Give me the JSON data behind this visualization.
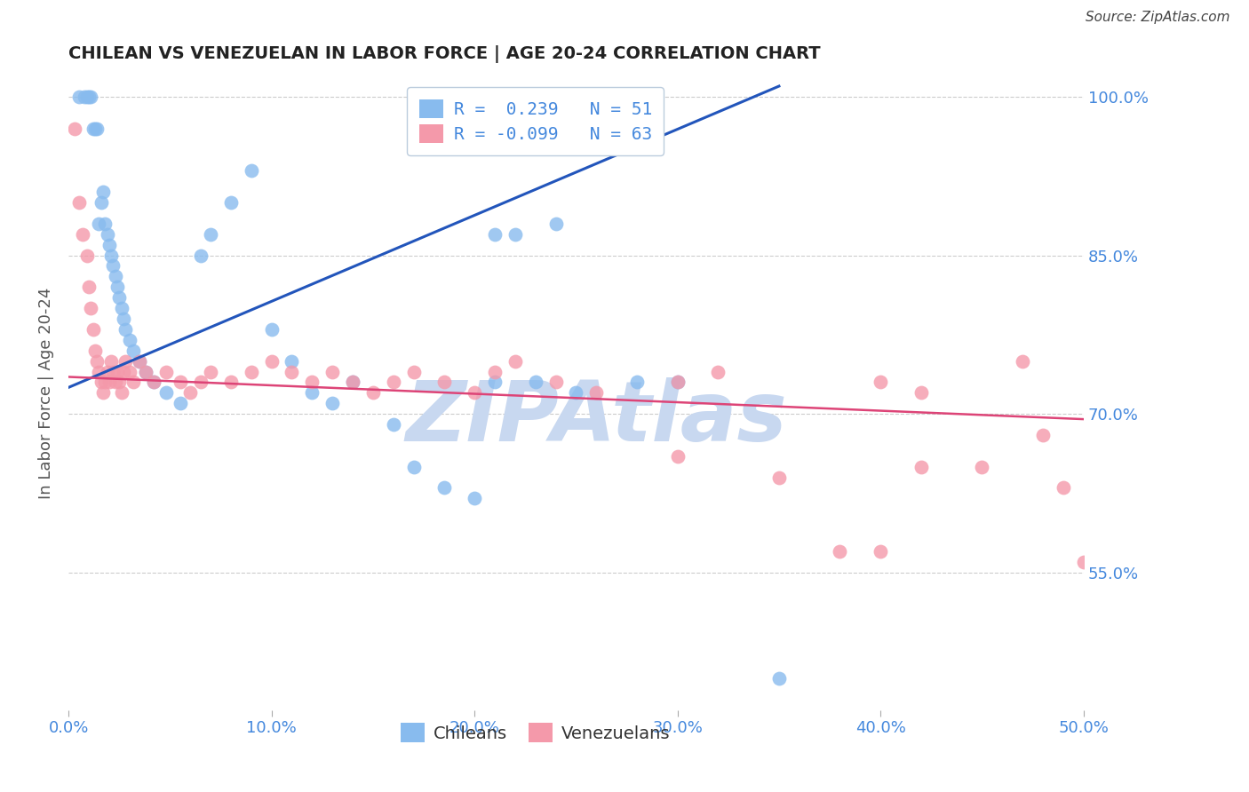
{
  "title": "CHILEAN VS VENEZUELAN IN LABOR FORCE | AGE 20-24 CORRELATION CHART",
  "source": "Source: ZipAtlas.com",
  "ylabel": "In Labor Force | Age 20-24",
  "xlim": [
    0.0,
    0.5
  ],
  "ylim": [
    0.42,
    1.02
  ],
  "xticks": [
    0.0,
    0.1,
    0.2,
    0.3,
    0.4,
    0.5
  ],
  "yticks": [
    0.55,
    0.7,
    0.85,
    1.0
  ],
  "xtick_labels": [
    "0.0%",
    "10.0%",
    "20.0%",
    "30.0%",
    "40.0%",
    "50.0%"
  ],
  "ytick_labels": [
    "55.0%",
    "70.0%",
    "85.0%",
    "100.0%"
  ],
  "watermark": "ZIPAtlas",
  "watermark_color": "#c8d8f0",
  "background_color": "#ffffff",
  "grid_color": "#cccccc",
  "title_color": "#222222",
  "tick_color": "#4488dd",
  "chilean_color": "#88bbee",
  "venezuelan_color": "#f499aa",
  "blue_line_color": "#2255bb",
  "pink_line_color": "#dd4477",
  "chilean_R": 0.239,
  "venezuelan_R": -0.099,
  "chilean_N": 51,
  "venezuelan_N": 63,
  "blue_line_x0": 0.0,
  "blue_line_y0": 0.725,
  "blue_line_x1": 0.35,
  "blue_line_y1": 1.01,
  "pink_line_x0": 0.0,
  "pink_line_x1": 0.5,
  "pink_line_y0": 0.735,
  "pink_line_y1": 0.695,
  "chilean_x": [
    0.005,
    0.008,
    0.009,
    0.01,
    0.011,
    0.012,
    0.013,
    0.014,
    0.015,
    0.016,
    0.017,
    0.018,
    0.019,
    0.02,
    0.021,
    0.022,
    0.023,
    0.024,
    0.025,
    0.026,
    0.027,
    0.028,
    0.03,
    0.032,
    0.035,
    0.038,
    0.042,
    0.048,
    0.055,
    0.065,
    0.07,
    0.08,
    0.09,
    0.1,
    0.11,
    0.12,
    0.13,
    0.14,
    0.16,
    0.17,
    0.185,
    0.2,
    0.21,
    0.22,
    0.24,
    0.25,
    0.28,
    0.3,
    0.35,
    0.21,
    0.23
  ],
  "chilean_y": [
    1.0,
    1.0,
    1.0,
    1.0,
    1.0,
    0.97,
    0.97,
    0.97,
    0.88,
    0.9,
    0.91,
    0.88,
    0.87,
    0.86,
    0.85,
    0.84,
    0.83,
    0.82,
    0.81,
    0.8,
    0.79,
    0.78,
    0.77,
    0.76,
    0.75,
    0.74,
    0.73,
    0.72,
    0.71,
    0.85,
    0.87,
    0.9,
    0.93,
    0.78,
    0.75,
    0.72,
    0.71,
    0.73,
    0.69,
    0.65,
    0.63,
    0.62,
    0.87,
    0.87,
    0.88,
    0.72,
    0.73,
    0.73,
    0.45,
    0.73,
    0.73
  ],
  "venezuelan_x": [
    0.003,
    0.005,
    0.007,
    0.009,
    0.01,
    0.011,
    0.012,
    0.013,
    0.014,
    0.015,
    0.016,
    0.017,
    0.018,
    0.019,
    0.02,
    0.021,
    0.022,
    0.023,
    0.024,
    0.025,
    0.026,
    0.027,
    0.028,
    0.03,
    0.032,
    0.035,
    0.038,
    0.042,
    0.048,
    0.055,
    0.06,
    0.065,
    0.07,
    0.08,
    0.09,
    0.1,
    0.11,
    0.12,
    0.13,
    0.14,
    0.15,
    0.16,
    0.17,
    0.185,
    0.2,
    0.21,
    0.22,
    0.24,
    0.26,
    0.3,
    0.32,
    0.35,
    0.38,
    0.4,
    0.42,
    0.45,
    0.47,
    0.48,
    0.49,
    0.5,
    0.3,
    0.4,
    0.42
  ],
  "venezuelan_y": [
    0.97,
    0.9,
    0.87,
    0.85,
    0.82,
    0.8,
    0.78,
    0.76,
    0.75,
    0.74,
    0.73,
    0.72,
    0.73,
    0.74,
    0.73,
    0.75,
    0.74,
    0.73,
    0.74,
    0.73,
    0.72,
    0.74,
    0.75,
    0.74,
    0.73,
    0.75,
    0.74,
    0.73,
    0.74,
    0.73,
    0.72,
    0.73,
    0.74,
    0.73,
    0.74,
    0.75,
    0.74,
    0.73,
    0.74,
    0.73,
    0.72,
    0.73,
    0.74,
    0.73,
    0.72,
    0.74,
    0.75,
    0.73,
    0.72,
    0.73,
    0.74,
    0.64,
    0.57,
    0.57,
    0.72,
    0.65,
    0.75,
    0.68,
    0.63,
    0.56,
    0.66,
    0.73,
    0.65
  ]
}
